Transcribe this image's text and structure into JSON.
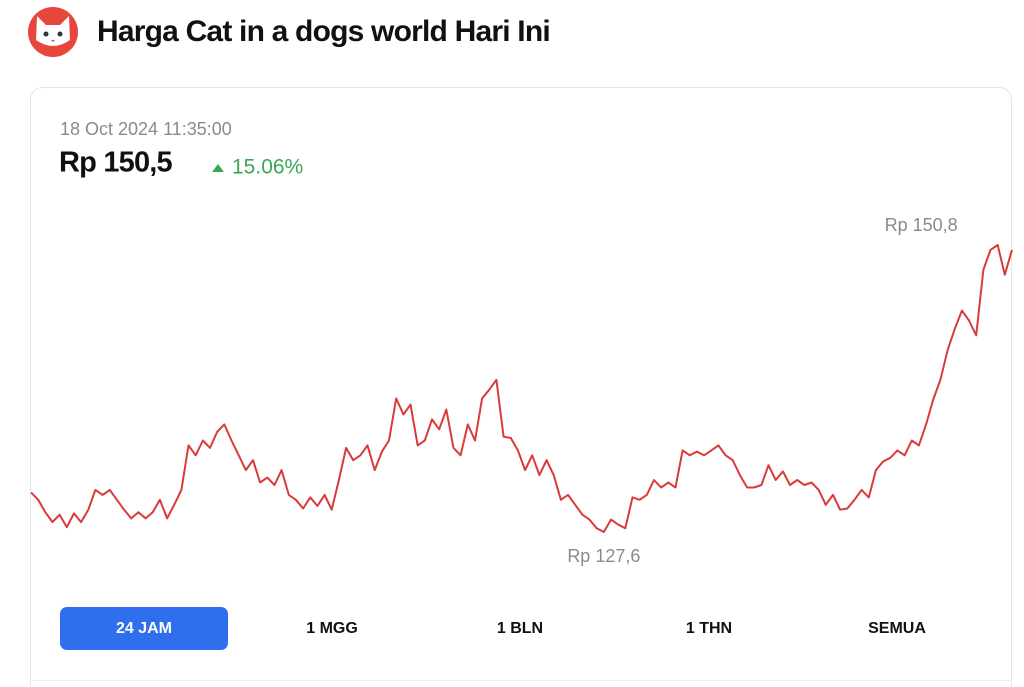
{
  "header": {
    "title": "Harga Cat in a dogs world Hari Ini"
  },
  "price": {
    "timestamp": "18 Oct 2024 11:35:00",
    "value": "Rp 150,5",
    "change": "15.06%"
  },
  "chart": {
    "type": "line",
    "color": "#d93a3a",
    "values": [
      130.8,
      130.2,
      129.2,
      128.4,
      129.0,
      128.0,
      129.1,
      128.4,
      129.4,
      131.0,
      130.6,
      131.0,
      130.2,
      129.4,
      128.7,
      129.2,
      128.7,
      129.2,
      130.2,
      128.7,
      129.8,
      131.0,
      134.6,
      133.8,
      135.0,
      134.4,
      135.7,
      136.3,
      135.0,
      133.8,
      132.6,
      133.4,
      131.6,
      132.0,
      131.4,
      132.6,
      130.6,
      130.2,
      129.5,
      130.4,
      129.7,
      130.6,
      129.4,
      131.8,
      134.4,
      133.4,
      133.8,
      134.6,
      132.6,
      134.1,
      135.0,
      138.4,
      137.1,
      137.9,
      134.6,
      135.0,
      136.7,
      135.9,
      137.5,
      134.4,
      133.8,
      136.3,
      135.0,
      138.4,
      139.1,
      139.9,
      135.3,
      135.2,
      134.2,
      132.6,
      133.8,
      132.2,
      133.4,
      132.2,
      130.2,
      130.6,
      129.8,
      129.0,
      128.6,
      127.9,
      127.6,
      128.6,
      128.2,
      127.9,
      130.4,
      130.2,
      130.6,
      131.8,
      131.2,
      131.6,
      131.2,
      134.2,
      133.8,
      134.1,
      133.8,
      134.2,
      134.6,
      133.8,
      133.4,
      132.2,
      131.2,
      131.2,
      131.4,
      133.0,
      131.8,
      132.5,
      131.4,
      131.8,
      131.4,
      131.6,
      131.0,
      129.8,
      130.6,
      129.4,
      129.5,
      130.2,
      131.0,
      130.4,
      132.6,
      133.3,
      133.6,
      134.2,
      133.8,
      135.0,
      134.6,
      136.3,
      138.3,
      139.9,
      142.3,
      144.0,
      145.5,
      144.7,
      143.5,
      148.8,
      150.4,
      150.8,
      148.4,
      150.4
    ],
    "max_label": {
      "value": 150.8,
      "label": "Rp 150,8"
    },
    "min_label": {
      "value": 127.6,
      "label": "Rp 127,6"
    }
  },
  "tabs": {
    "items": [
      "24 JAM",
      "1 MGG",
      "1 BLN",
      "1 THN",
      "SEMUA"
    ],
    "active": 0
  }
}
